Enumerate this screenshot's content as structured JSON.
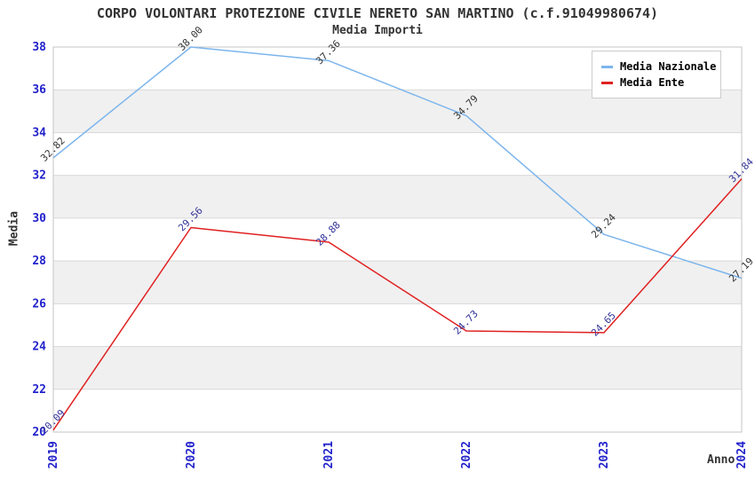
{
  "chart_data": {
    "type": "line",
    "title": "CORPO VOLONTARI PROTEZIONE CIVILE NERETO SAN MARTINO (c.f.91049980674)",
    "subtitle": "Media Importi",
    "xlabel": "Anno",
    "ylabel": "Media",
    "categories": [
      "2019",
      "2020",
      "2021",
      "2022",
      "2023",
      "2024"
    ],
    "series": [
      {
        "name": "Media Nazionale",
        "color": "#7cb5ec",
        "label_color": "#333333",
        "values": [
          32.82,
          38.0,
          37.36,
          34.79,
          29.24,
          27.19
        ]
      },
      {
        "name": "Media Ente",
        "color": "#e02020",
        "label_color": "#333399",
        "values": [
          20.09,
          29.56,
          28.88,
          24.73,
          24.65,
          31.84
        ]
      }
    ],
    "ylim": [
      20,
      38
    ],
    "y_ticks": [
      20,
      22,
      24,
      26,
      28,
      30,
      32,
      34,
      36,
      38
    ],
    "grid": true,
    "legend_position": "top-right",
    "band_color": "#f0f0f0",
    "grid_color": "#d9d9d9",
    "border_color": "#c6c6c6",
    "tick_label_color": "#2222cc",
    "value_label_decimals": 2
  }
}
